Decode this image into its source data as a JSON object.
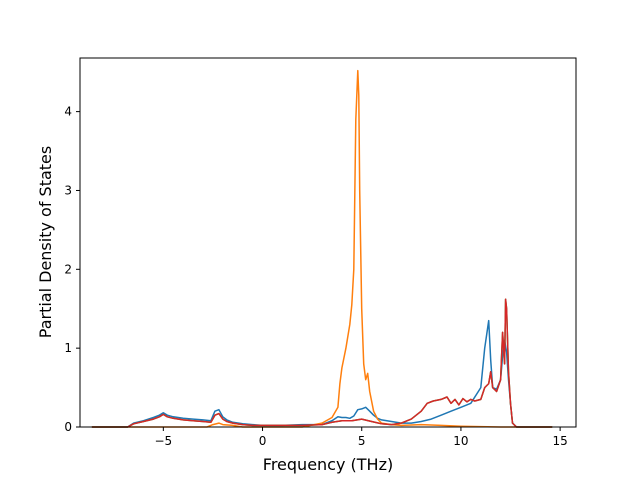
{
  "chart_data": {
    "type": "line",
    "xlabel": "Frequency (THz)",
    "ylabel": "Partial Density of States",
    "xlim": [
      -9.2,
      15.8
    ],
    "ylim": [
      0,
      4.68
    ],
    "xticks": [
      -5,
      0,
      5,
      10,
      15
    ],
    "xtick_labels": [
      "−5",
      "0",
      "5",
      "10",
      "15"
    ],
    "yticks": [
      0,
      1,
      2,
      3,
      4
    ],
    "ytick_labels": [
      "0",
      "1",
      "2",
      "3",
      "4"
    ],
    "grid": false,
    "series": [
      {
        "color": "#1f77b4",
        "x": [
          -8.6,
          -6.8,
          -6.5,
          -6.0,
          -5.5,
          -5.2,
          -5.0,
          -4.8,
          -4.5,
          -4.0,
          -3.5,
          -3.0,
          -2.6,
          -2.4,
          -2.2,
          -2.0,
          -1.8,
          -1.5,
          -1.0,
          -0.5,
          0.0,
          1.0,
          2.0,
          3.0,
          3.5,
          3.8,
          4.0,
          4.2,
          4.4,
          4.6,
          4.8,
          5.0,
          5.2,
          5.4,
          5.6,
          5.8,
          6.0,
          6.5,
          7.0,
          7.5,
          8.0,
          8.5,
          9.0,
          9.5,
          10.0,
          10.5,
          11.0,
          11.2,
          11.4,
          11.5,
          11.6,
          11.8,
          12.0,
          12.1,
          12.2,
          12.3,
          12.4,
          12.5,
          12.6,
          12.8,
          14.6
        ],
        "y": [
          0,
          0,
          0.05,
          0.08,
          0.12,
          0.15,
          0.18,
          0.15,
          0.13,
          0.11,
          0.1,
          0.09,
          0.08,
          0.2,
          0.22,
          0.13,
          0.09,
          0.06,
          0.04,
          0.03,
          0.02,
          0.02,
          0.03,
          0.03,
          0.08,
          0.13,
          0.12,
          0.12,
          0.11,
          0.14,
          0.22,
          0.23,
          0.25,
          0.2,
          0.15,
          0.11,
          0.09,
          0.07,
          0.05,
          0.05,
          0.07,
          0.1,
          0.15,
          0.2,
          0.25,
          0.3,
          0.5,
          1.0,
          1.35,
          0.85,
          0.5,
          0.48,
          0.6,
          0.9,
          1.1,
          0.95,
          0.6,
          0.3,
          0.05,
          0,
          0
        ]
      },
      {
        "color": "#ff7f0e",
        "x": [
          -8.6,
          -2.8,
          -2.5,
          -2.2,
          -2.0,
          -1.5,
          -1.0,
          2.0,
          3.0,
          3.5,
          3.8,
          3.9,
          4.0,
          4.2,
          4.4,
          4.5,
          4.6,
          4.7,
          4.8,
          4.85,
          4.9,
          5.0,
          5.1,
          5.2,
          5.3,
          5.4,
          5.6,
          5.8,
          6.0,
          6.5,
          7.0,
          8.0,
          9.0,
          10.0,
          12.0,
          14.6
        ],
        "y": [
          0,
          0,
          0.03,
          0.05,
          0.03,
          0.02,
          0,
          0,
          0.05,
          0.12,
          0.25,
          0.55,
          0.75,
          1.0,
          1.3,
          1.55,
          2.0,
          3.9,
          4.52,
          4.2,
          3.0,
          1.5,
          0.8,
          0.6,
          0.68,
          0.45,
          0.2,
          0.1,
          0.05,
          0.03,
          0.02,
          0.03,
          0.02,
          0.01,
          0,
          0
        ]
      },
      {
        "color": "#2ca02c",
        "x": [
          -8.6,
          -6.8,
          -6.5,
          -6.0,
          -5.5,
          -5.2,
          -5.0,
          -4.8,
          -4.5,
          -4.0,
          -3.5,
          -3.0,
          -2.6,
          -2.4,
          -2.2,
          -2.0,
          -1.8,
          -1.5,
          -1.0,
          -0.5,
          0.0,
          1.0,
          2.0,
          3.0,
          3.5,
          4.0,
          4.5,
          5.0,
          5.5,
          6.0,
          6.5,
          7.0,
          7.5,
          8.0,
          8.3,
          8.6,
          9.0,
          9.3,
          9.5,
          9.7,
          9.9,
          10.1,
          10.3,
          10.5,
          10.7,
          11.0,
          11.2,
          11.4,
          11.5,
          11.6,
          11.8,
          12.0,
          12.1,
          12.2,
          12.25,
          12.3,
          12.4,
          12.5,
          12.6,
          12.8,
          14.6
        ],
        "y": [
          0,
          0,
          0.04,
          0.07,
          0.1,
          0.13,
          0.16,
          0.13,
          0.11,
          0.09,
          0.08,
          0.07,
          0.06,
          0.15,
          0.17,
          0.1,
          0.07,
          0.05,
          0.03,
          0.02,
          0.02,
          0.02,
          0.02,
          0.03,
          0.06,
          0.08,
          0.08,
          0.1,
          0.07,
          0.04,
          0.03,
          0.05,
          0.1,
          0.2,
          0.3,
          0.33,
          0.35,
          0.38,
          0.3,
          0.35,
          0.28,
          0.36,
          0.32,
          0.35,
          0.33,
          0.35,
          0.5,
          0.55,
          0.7,
          0.5,
          0.45,
          0.6,
          1.2,
          0.8,
          1.62,
          1.5,
          0.7,
          0.3,
          0.05,
          0,
          0
        ]
      },
      {
        "color": "#d62728",
        "x": [
          -8.6,
          -6.8,
          -6.5,
          -6.0,
          -5.5,
          -5.2,
          -5.0,
          -4.8,
          -4.5,
          -4.0,
          -3.5,
          -3.0,
          -2.6,
          -2.4,
          -2.2,
          -2.0,
          -1.8,
          -1.5,
          -1.0,
          -0.5,
          0.0,
          1.0,
          2.0,
          3.0,
          3.5,
          4.0,
          4.5,
          5.0,
          5.5,
          6.0,
          6.5,
          7.0,
          7.5,
          8.0,
          8.3,
          8.6,
          9.0,
          9.3,
          9.5,
          9.7,
          9.9,
          10.1,
          10.3,
          10.5,
          10.7,
          11.0,
          11.2,
          11.4,
          11.5,
          11.6,
          11.8,
          12.0,
          12.1,
          12.2,
          12.25,
          12.3,
          12.4,
          12.5,
          12.6,
          12.8,
          14.6
        ],
        "y": [
          0,
          0,
          0.04,
          0.07,
          0.1,
          0.13,
          0.16,
          0.13,
          0.11,
          0.09,
          0.08,
          0.07,
          0.06,
          0.15,
          0.17,
          0.1,
          0.07,
          0.05,
          0.03,
          0.02,
          0.02,
          0.02,
          0.02,
          0.03,
          0.06,
          0.08,
          0.08,
          0.1,
          0.07,
          0.04,
          0.03,
          0.05,
          0.1,
          0.2,
          0.3,
          0.33,
          0.35,
          0.38,
          0.3,
          0.35,
          0.28,
          0.36,
          0.32,
          0.35,
          0.33,
          0.35,
          0.5,
          0.55,
          0.7,
          0.5,
          0.45,
          0.6,
          1.2,
          0.8,
          1.62,
          1.5,
          0.7,
          0.3,
          0.05,
          0,
          0
        ]
      }
    ]
  }
}
